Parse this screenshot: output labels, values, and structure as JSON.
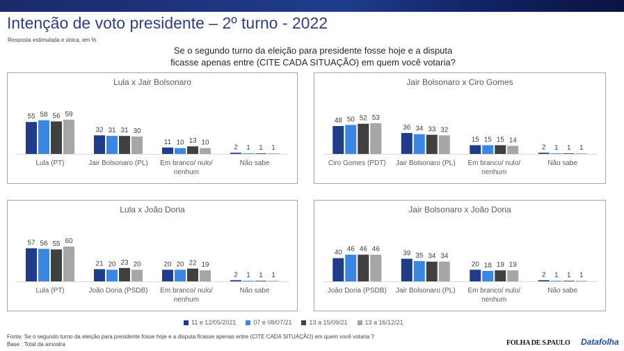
{
  "page": {
    "title": "Intenção de voto presidente – 2º turno - 2022",
    "subtitle": "Resposta estimulada e única, em %",
    "question_line1": "Se o segundo turno da eleição para presidente fosse hoje e a disputa",
    "question_line2": "ficasse apenas entre (CITE CADA SITUAÇÃO) em quem você votaria?",
    "source": "Fonte: Se o segundo turno da eleição para presidente fosse hoje e a disputa ficasse apenas entre (CITE CADA SITUAÇÃO) em quem você votaria ?",
    "base": "Base : Total da amostra",
    "logo_folha": "FOLHA DE S.PAULO",
    "logo_datafolha": "Datafolha"
  },
  "legend": [
    {
      "label": "11 e 12/05/2021",
      "color": "#1f3c88"
    },
    {
      "label": "07 e 08/07/21",
      "color": "#3a86e0"
    },
    {
      "label": "13 a 15/09/21",
      "color": "#404040"
    },
    {
      "label": "13 a 16/12/21",
      "color": "#a6a6a6"
    }
  ],
  "chart_data": [
    {
      "type": "bar",
      "title": "Lula x  Jair Bolsonaro",
      "categories": [
        "Lula (PT)",
        "Jair Bolsonaro (PL)",
        "Em branco/ nulo/ nenhum",
        "Não sabe"
      ],
      "series": [
        {
          "name": "11 e 12/05/2021",
          "values": [
            55,
            32,
            11,
            2
          ]
        },
        {
          "name": "07 e 08/07/21",
          "values": [
            58,
            31,
            10,
            1
          ]
        },
        {
          "name": "13 a 15/09/21",
          "values": [
            56,
            31,
            13,
            1
          ]
        },
        {
          "name": "13 a 16/12/21",
          "values": [
            59,
            30,
            10,
            1
          ]
        }
      ]
    },
    {
      "type": "bar",
      "title": "Jair Bolsonaro x Ciro Gomes",
      "categories": [
        "Ciro Gomes (PDT)",
        "Jair Bolsonaro (PL)",
        "Em branco/ nulo/ nenhum",
        "Não sabe"
      ],
      "series": [
        {
          "name": "11 e 12/05/2021",
          "values": [
            48,
            36,
            15,
            2
          ]
        },
        {
          "name": "07 e 08/07/21",
          "values": [
            50,
            34,
            15,
            1
          ]
        },
        {
          "name": "13 a 15/09/21",
          "values": [
            52,
            33,
            15,
            1
          ]
        },
        {
          "name": "13 a 16/12/21",
          "values": [
            53,
            32,
            14,
            1
          ]
        }
      ]
    },
    {
      "type": "bar",
      "title": "Lula x João Doria",
      "categories": [
        "Lula (PT)",
        "João Doria (PSDB)",
        "Em branco/ nulo/ nenhum",
        "Não sabe"
      ],
      "series": [
        {
          "name": "11 e 12/05/2021",
          "values": [
            57,
            21,
            20,
            2
          ]
        },
        {
          "name": "07 e 08/07/21",
          "values": [
            56,
            20,
            20,
            1
          ]
        },
        {
          "name": "13 a 15/09/21",
          "values": [
            55,
            23,
            22,
            1
          ]
        },
        {
          "name": "13 a 16/12/21",
          "values": [
            60,
            20,
            19,
            1
          ]
        }
      ]
    },
    {
      "type": "bar",
      "title": "Jair Bolsonaro x João Doria",
      "categories": [
        "João Doria (PSDB)",
        "Jair Bolsonaro (PL)",
        "Em branco/ nulo/ nenhum",
        "Não sabe"
      ],
      "series": [
        {
          "name": "11 e 12/05/2021",
          "values": [
            40,
            39,
            20,
            2
          ]
        },
        {
          "name": "07 e 08/07/21",
          "values": [
            46,
            35,
            18,
            1
          ]
        },
        {
          "name": "13 a 15/09/21",
          "values": [
            46,
            34,
            19,
            1
          ]
        },
        {
          "name": "13 a 16/12/21",
          "values": [
            46,
            34,
            19,
            1
          ]
        }
      ]
    }
  ]
}
